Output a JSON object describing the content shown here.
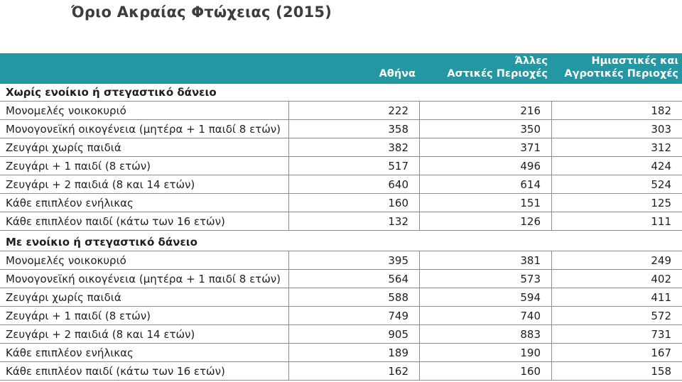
{
  "page": {
    "title": "Όριο Ακραίας Φτώχειας (2015)"
  },
  "colors": {
    "header_band": "#2398A3",
    "border": "#8c8c8c",
    "title_text": "#3d3d3d"
  },
  "chart_data": {
    "type": "table",
    "title": "Όριο Ακραίας Φτώχειας (2015)",
    "column_headers": [
      {
        "line1": "",
        "line2": "Αθήνα"
      },
      {
        "line1": "Άλλες",
        "line2": "Αστικές Περιοχές"
      },
      {
        "line1": "Ημιαστικές και",
        "line2": "Αγροτικές Περιοχές"
      }
    ],
    "sections": [
      {
        "header": "Χωρίς ενοίκιο ή στεγαστικό δάνειο",
        "rows": [
          {
            "label": "Μονομελές νοικοκυριό",
            "values": [
              222,
              216,
              182
            ]
          },
          {
            "label": "Μονογονεϊκή οικογένεια (μητέρα + 1 παιδί 8 ετών)",
            "values": [
              358,
              350,
              303
            ]
          },
          {
            "label": "Ζευγάρι χωρίς παιδιά",
            "values": [
              382,
              371,
              312
            ]
          },
          {
            "label": "Ζευγάρι + 1 παιδί (8 ετών)",
            "values": [
              517,
              496,
              424
            ]
          },
          {
            "label": "Ζευγάρι + 2 παιδιά (8 και 14 ετών)",
            "values": [
              640,
              614,
              524
            ]
          },
          {
            "label": "Κάθε επιπλέον ενήλικας",
            "values": [
              160,
              151,
              125
            ]
          },
          {
            "label": "Κάθε επιπλέον παιδί (κάτω των 16 ετών)",
            "values": [
              132,
              126,
              111
            ]
          }
        ]
      },
      {
        "header": "Με ενοίκιο ή στεγαστικό δάνειο",
        "rows": [
          {
            "label": "Μονομελές νοικοκυριό",
            "values": [
              395,
              381,
              249
            ]
          },
          {
            "label": "Μονογονεϊκή οικογένεια (μητέρα + 1 παιδί 8 ετών)",
            "values": [
              564,
              573,
              402
            ]
          },
          {
            "label": "Ζευγάρι χωρίς παιδιά",
            "values": [
              588,
              594,
              411
            ]
          },
          {
            "label": "Ζευγάρι + 1 παιδί (8 ετών)",
            "values": [
              749,
              740,
              572
            ]
          },
          {
            "label": "Ζευγάρι + 2 παιδιά (8 και 14 ετών)",
            "values": [
              905,
              883,
              731
            ]
          },
          {
            "label": "Κάθε επιπλέον ενήλικας",
            "values": [
              189,
              190,
              167
            ]
          },
          {
            "label": "Κάθε επιπλέον παιδί (κάτω των 16 ετών)",
            "values": [
              162,
              160,
              158
            ]
          }
        ]
      }
    ]
  }
}
